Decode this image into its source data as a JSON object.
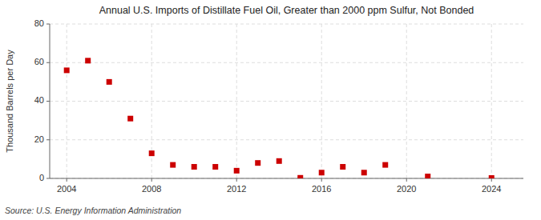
{
  "chart_data": {
    "type": "scatter",
    "title": "Annual U.S. Imports of Distillate Fuel Oil, Greater than 2000 ppm Sulfur, Not Bonded",
    "ylabel": "Thousand Barrels per Day",
    "source": "Source: U.S. Energy Information Administration",
    "x": [
      2004,
      2005,
      2006,
      2007,
      2008,
      2009,
      2010,
      2011,
      2012,
      2013,
      2014,
      2015,
      2016,
      2017,
      2018,
      2019,
      2021,
      2024
    ],
    "values": [
      56,
      61,
      50,
      31,
      13,
      7,
      6,
      6,
      4,
      8,
      9,
      0.3,
      3,
      6,
      3,
      7,
      1,
      0.2
    ],
    "color": "#cc0000",
    "marker": "square",
    "xlim": [
      2003.2,
      2025.5
    ],
    "ylim": [
      0,
      80
    ],
    "xticks": [
      2004,
      2008,
      2012,
      2016,
      2020,
      2024
    ],
    "yticks": [
      0,
      20,
      40,
      60,
      80
    ],
    "grid": true
  }
}
